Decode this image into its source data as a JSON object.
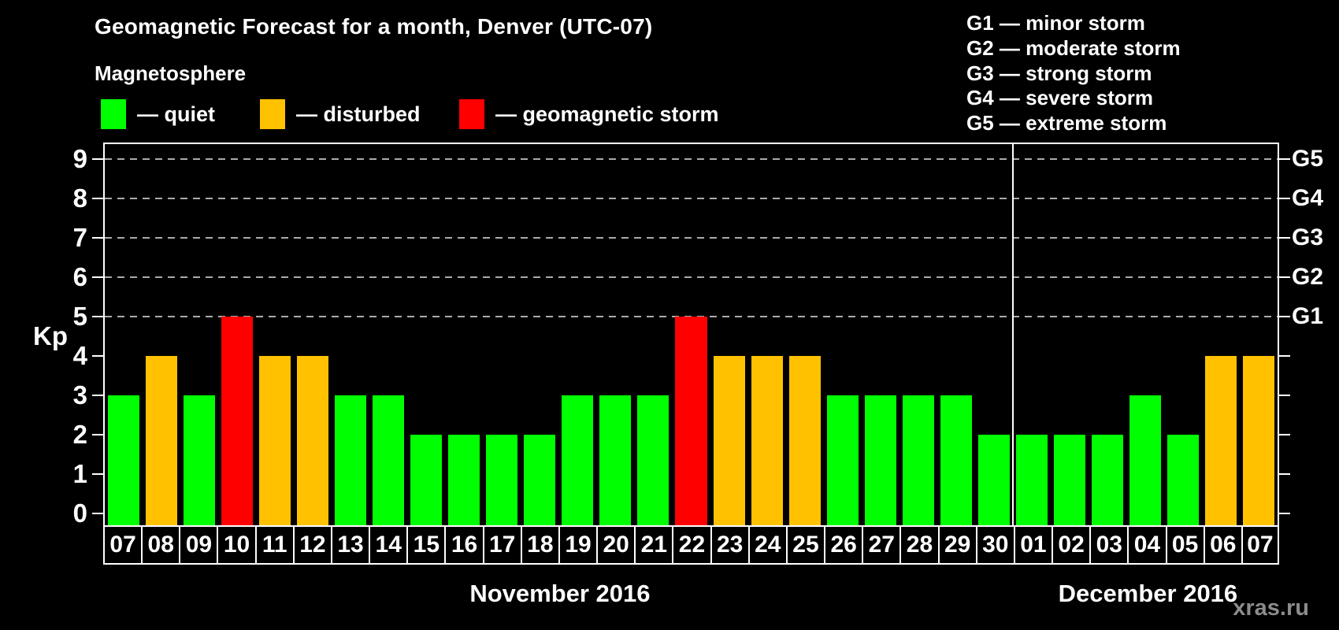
{
  "header": {
    "title": "Geomagnetic Forecast for a month, Denver (UTC-07)",
    "subtitle": "Magnetosphere"
  },
  "magnetosphere_legend": {
    "items": [
      {
        "name": "quiet",
        "label": "— quiet",
        "color": "#00FF00",
        "x": 0
      },
      {
        "name": "disturbed",
        "label": "— disturbed",
        "color": "#FFC100",
        "x": 202
      },
      {
        "name": "storm",
        "label": "— geomagnetic storm",
        "color": "#FF0000",
        "x": 455
      }
    ]
  },
  "g_legend": {
    "lines": [
      "G1 — minor storm",
      "G2 — moderate storm",
      "G3 — strong storm",
      "G4 — severe storm",
      "G5 — extreme storm"
    ]
  },
  "watermark": "xras.ru",
  "chart_data": {
    "type": "bar",
    "title": "Geomagnetic Forecast for a month, Denver (UTC-07)",
    "ylabel": "Kp",
    "ylim": [
      0,
      9
    ],
    "yticks": [
      0,
      1,
      2,
      3,
      4,
      5,
      6,
      7,
      8,
      9
    ],
    "gridline_levels": [
      5,
      6,
      7,
      8,
      9
    ],
    "grid": "dashed horizontal lines at storm levels only",
    "legend_position": "top-left",
    "right_axis": [
      {
        "label": "G5",
        "kp": 9
      },
      {
        "label": "G4",
        "kp": 8
      },
      {
        "label": "G3",
        "kp": 7
      },
      {
        "label": "G2",
        "kp": 6
      },
      {
        "label": "G1",
        "kp": 5
      }
    ],
    "color_map": {
      "quiet": "#00FF00",
      "disturbed": "#FFC100",
      "storm": "#FF0000"
    },
    "months": [
      {
        "label": "November 2016",
        "days": [
          "07",
          "08",
          "09",
          "10",
          "11",
          "12",
          "13",
          "14",
          "15",
          "16",
          "17",
          "18",
          "19",
          "20",
          "21",
          "22",
          "23",
          "24",
          "25",
          "26",
          "27",
          "28",
          "29",
          "30"
        ],
        "values": [
          3,
          4,
          3,
          5,
          4,
          4,
          3,
          3,
          2,
          2,
          2,
          2,
          3,
          3,
          3,
          5,
          4,
          4,
          4,
          3,
          3,
          3,
          3,
          2
        ],
        "statuses": [
          "quiet",
          "disturbed",
          "quiet",
          "storm",
          "disturbed",
          "disturbed",
          "quiet",
          "quiet",
          "quiet",
          "quiet",
          "quiet",
          "quiet",
          "quiet",
          "quiet",
          "quiet",
          "storm",
          "disturbed",
          "disturbed",
          "disturbed",
          "quiet",
          "quiet",
          "quiet",
          "quiet",
          "quiet"
        ]
      },
      {
        "label": "December 2016",
        "days": [
          "01",
          "02",
          "03",
          "04",
          "05",
          "06",
          "07"
        ],
        "values": [
          2,
          2,
          2,
          3,
          2,
          4,
          4
        ],
        "statuses": [
          "quiet",
          "quiet",
          "quiet",
          "quiet",
          "quiet",
          "disturbed",
          "disturbed"
        ]
      }
    ]
  }
}
